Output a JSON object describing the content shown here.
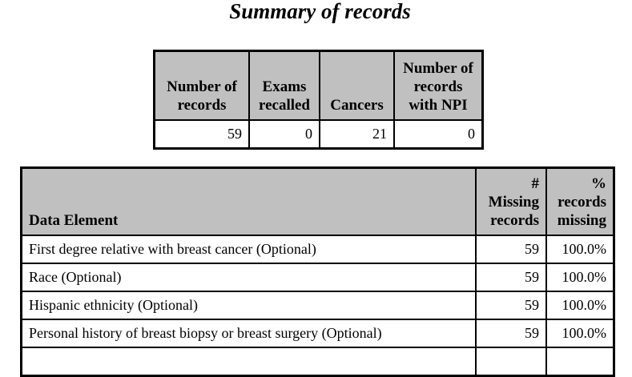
{
  "title": "Summary of records",
  "summary": {
    "headers": [
      "Number of records",
      "Exams recalled",
      "Cancers",
      "Number of records with NPI"
    ],
    "values": [
      "59",
      "0",
      "21",
      "0"
    ]
  },
  "missing": {
    "headers": [
      "Data Element",
      "# Missing records",
      "% records missing"
    ],
    "rows": [
      {
        "element": "First degree relative with breast cancer (Optional)",
        "missing": "59",
        "pct": "100.0%"
      },
      {
        "element": "Race (Optional)",
        "missing": "59",
        "pct": "100.0%"
      },
      {
        "element": "Hispanic ethnicity (Optional)",
        "missing": "59",
        "pct": "100.0%"
      },
      {
        "element": "Personal history of breast biopsy or breast surgery (Optional)",
        "missing": "59",
        "pct": "100.0%"
      }
    ]
  }
}
